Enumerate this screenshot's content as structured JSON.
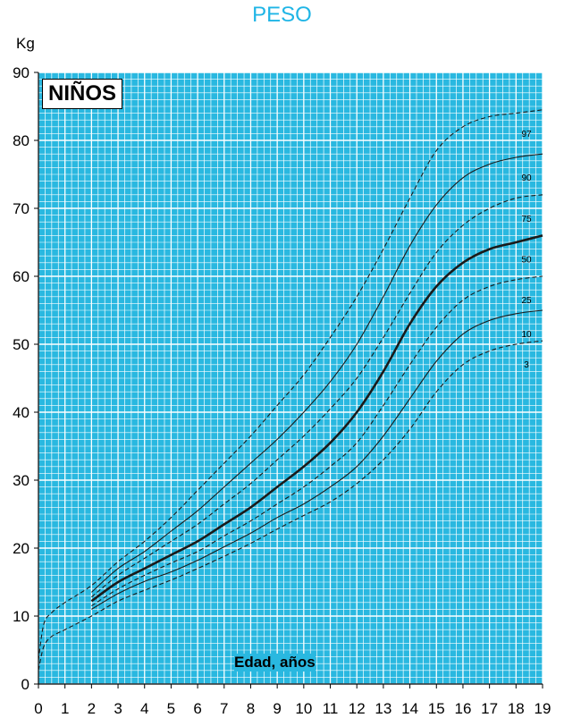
{
  "chart_data": {
    "type": "line",
    "title": "PESO",
    "ylabel": "Kg",
    "xlabel": "Edad, años",
    "inset_label": "NIÑOS",
    "xlim": [
      0,
      19
    ],
    "ylim": [
      0,
      90
    ],
    "x_ticks": [
      0,
      1,
      2,
      3,
      4,
      5,
      6,
      7,
      8,
      9,
      10,
      11,
      12,
      13,
      14,
      15,
      16,
      17,
      18,
      19
    ],
    "y_ticks": [
      0,
      10,
      20,
      30,
      40,
      50,
      60,
      70,
      80,
      90
    ],
    "grid": true,
    "background_color": "#29b8e0",
    "grid_color": "#ffffff",
    "line_color": "#1a1a1a",
    "series": [
      {
        "name": "97",
        "style": "dashed",
        "x": [
          0,
          0.2,
          0.5,
          1,
          2,
          3,
          4,
          5,
          6,
          7,
          8,
          9,
          10,
          11,
          12,
          13,
          14,
          15,
          16,
          17,
          18,
          19
        ],
        "y": [
          3.5,
          8.8,
          10.5,
          12,
          14.5,
          18,
          21,
          24.5,
          28.5,
          32.5,
          36.5,
          41,
          45.5,
          51,
          57,
          64,
          71.5,
          78.5,
          82,
          83.5,
          84,
          84.5
        ]
      },
      {
        "name": "90",
        "style": "solid",
        "x": [
          2,
          3,
          4,
          5,
          6,
          7,
          8,
          9,
          10,
          11,
          12,
          13,
          14,
          15,
          16,
          17,
          18,
          19
        ],
        "y": [
          13.5,
          17,
          19.5,
          22.5,
          25.5,
          29,
          32.5,
          36,
          40,
          44.5,
          50,
          57,
          64.5,
          70.5,
          74.5,
          76.5,
          77.5,
          78
        ]
      },
      {
        "name": "75",
        "style": "dashed",
        "x": [
          2,
          3,
          4,
          5,
          6,
          7,
          8,
          9,
          10,
          11,
          12,
          13,
          14,
          15,
          16,
          17,
          18,
          19
        ],
        "y": [
          12.8,
          16,
          18.5,
          21,
          23.5,
          26.5,
          29.5,
          33,
          36.5,
          40.5,
          45,
          51,
          57.5,
          63.5,
          67.5,
          70,
          71.5,
          72
        ]
      },
      {
        "name": "50",
        "style": "bold",
        "x": [
          2,
          3,
          4,
          5,
          6,
          7,
          8,
          9,
          10,
          11,
          12,
          13,
          14,
          15,
          16,
          17,
          18,
          19
        ],
        "y": [
          12.2,
          15,
          17,
          19,
          21,
          23.5,
          26,
          29,
          32,
          35.5,
          40,
          46,
          53,
          58.5,
          62,
          64,
          65,
          66
        ]
      },
      {
        "name": "25",
        "style": "dashed",
        "x": [
          2,
          3,
          4,
          5,
          6,
          7,
          8,
          9,
          10,
          11,
          12,
          13,
          14,
          15,
          16,
          17,
          18,
          19
        ],
        "y": [
          11.5,
          14,
          16,
          17.8,
          19.5,
          21.8,
          24,
          26.5,
          29,
          32,
          35.5,
          41,
          47,
          52.5,
          56.5,
          58.5,
          59.5,
          60
        ]
      },
      {
        "name": "10",
        "style": "solid",
        "x": [
          2,
          3,
          4,
          5,
          6,
          7,
          8,
          9,
          10,
          11,
          12,
          13,
          14,
          15,
          16,
          17,
          18,
          19
        ],
        "y": [
          11,
          13.3,
          15.1,
          16.5,
          18.2,
          20.2,
          22.2,
          24.5,
          26.5,
          29,
          32,
          36.5,
          42,
          47.5,
          51.5,
          53.5,
          54.5,
          55
        ]
      },
      {
        "name": "3",
        "style": "dashed",
        "x": [
          0,
          0.2,
          0.5,
          1,
          2,
          3,
          4,
          5,
          6,
          7,
          8,
          9,
          10,
          11,
          12,
          13,
          14,
          15,
          16,
          17,
          18,
          19
        ],
        "y": [
          2,
          5.5,
          7,
          8,
          10,
          12.2,
          13.8,
          15.3,
          17,
          18.8,
          20.7,
          22.8,
          24.8,
          26.8,
          29.5,
          33,
          37.5,
          43,
          47,
          49,
          50,
          50.5
        ]
      }
    ]
  }
}
